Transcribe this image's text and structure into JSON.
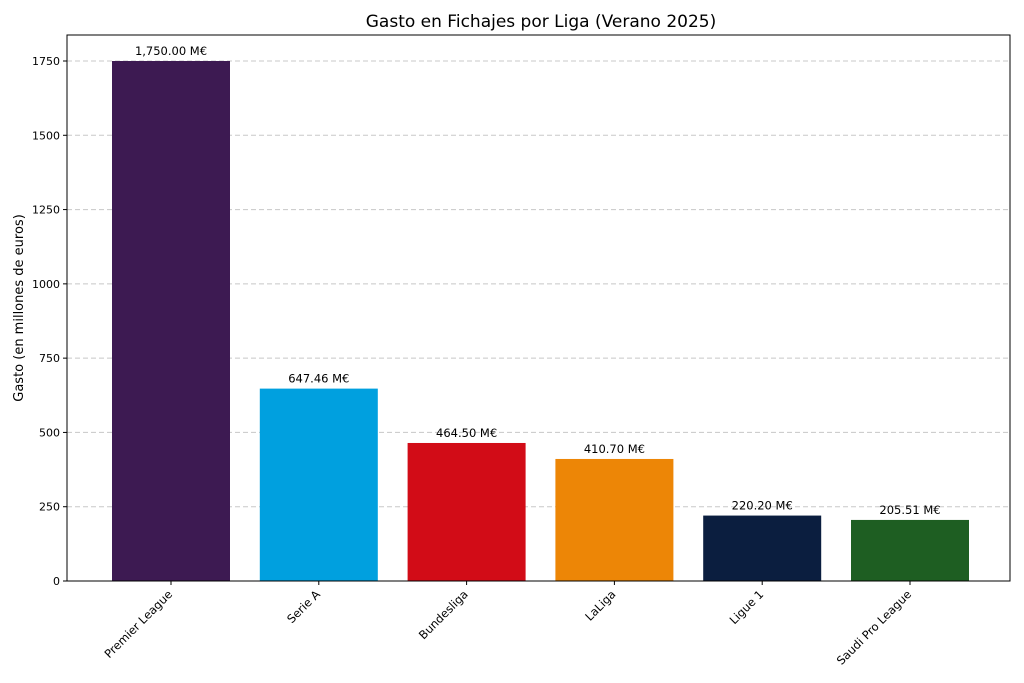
{
  "chart_data": {
    "type": "bar",
    "title": "Gasto en Fichajes por Liga (Verano 2025)",
    "xlabel": "",
    "ylabel": "Gasto (en millones de euros)",
    "categories": [
      "Premier League",
      "Serie A",
      "Bundesliga",
      "LaLiga",
      "Ligue 1",
      "Saudi Pro League"
    ],
    "values": [
      1750.0,
      647.46,
      464.5,
      410.7,
      220.2,
      205.51
    ],
    "data_labels": [
      "1,750.00 M€",
      "647.46 M€",
      "464.50 M€",
      "410.70 M€",
      "220.20 M€",
      "205.51 M€"
    ],
    "colors": [
      "#3d1a52",
      "#00a0df",
      "#d20c17",
      "#ed8606",
      "#0b1e3f",
      "#1e5e22"
    ],
    "yticks": [
      0,
      250,
      500,
      750,
      1000,
      1250,
      1500,
      1750
    ],
    "ylim": [
      0,
      1837.5
    ],
    "grid": "y-dashed",
    "legend": "none"
  }
}
